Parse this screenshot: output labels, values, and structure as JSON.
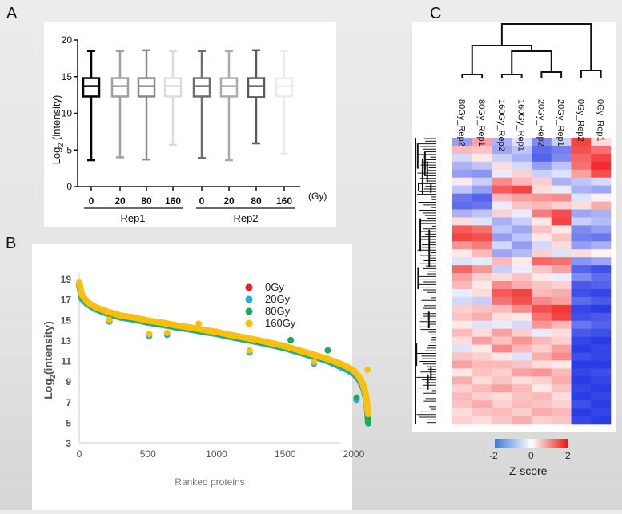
{
  "panels": {
    "a": "A",
    "b": "B",
    "c": "C"
  },
  "chart_data": [
    {
      "type": "box",
      "panel": "A",
      "ylabel": "Log2 (intensity)",
      "ylabel_main": "Log",
      "ylabel_sub": "2",
      "ylabel_rest": " (intensity)",
      "ylim": [
        0,
        20
      ],
      "yticks": [
        "0",
        "5",
        "10",
        "15",
        "20"
      ],
      "x_unit": "(Gy)",
      "groups": [
        {
          "label": "Rep1"
        },
        {
          "label": "Rep2"
        }
      ],
      "boxes": [
        {
          "label": "0",
          "group": "Rep1",
          "min": 3.6,
          "q1": 12.3,
          "median": 13.7,
          "q3": 14.8,
          "max": 18.5,
          "color": "#000000"
        },
        {
          "label": "20",
          "group": "Rep1",
          "min": 4.0,
          "q1": 12.3,
          "median": 13.7,
          "q3": 14.8,
          "max": 18.5,
          "color": "#a0a0a0"
        },
        {
          "label": "80",
          "group": "Rep1",
          "min": 3.7,
          "q1": 12.3,
          "median": 13.7,
          "q3": 14.8,
          "max": 18.6,
          "color": "#8a8a8a"
        },
        {
          "label": "160",
          "group": "Rep1",
          "min": 5.7,
          "q1": 12.3,
          "median": 13.7,
          "q3": 14.8,
          "max": 18.5,
          "color": "#dcdcdc"
        },
        {
          "label": "0",
          "group": "Rep2",
          "min": 3.9,
          "q1": 12.3,
          "median": 13.7,
          "q3": 14.8,
          "max": 18.5,
          "color": "#6e6e6e"
        },
        {
          "label": "20",
          "group": "Rep2",
          "min": 3.6,
          "q1": 12.3,
          "median": 13.7,
          "q3": 14.8,
          "max": 18.5,
          "color": "#ababab"
        },
        {
          "label": "80",
          "group": "Rep2",
          "min": 5.9,
          "q1": 12.2,
          "median": 13.7,
          "q3": 14.8,
          "max": 18.6,
          "color": "#5a5a5a"
        },
        {
          "label": "160",
          "group": "Rep2",
          "min": 4.5,
          "q1": 12.3,
          "median": 13.7,
          "q3": 14.8,
          "max": 18.5,
          "color": "#ebebeb"
        }
      ]
    },
    {
      "type": "scatter",
      "panel": "B",
      "xlabel": "Ranked proteins",
      "ylabel_main": "Log",
      "ylabel_sub": "2",
      "ylabel_rest": "(intensity)",
      "xlim": [
        0,
        2300
      ],
      "ylim": [
        3,
        19.5
      ],
      "xticks": [
        "0",
        "500",
        "1000",
        "1500",
        "2000"
      ],
      "yticks": [
        "3",
        "5",
        "7",
        "9",
        "11",
        "13",
        "15",
        "17",
        "19"
      ],
      "legend_position": "top-right",
      "x": [
        0,
        20,
        60,
        120,
        200,
        300,
        400,
        500,
        600,
        700,
        800,
        900,
        1000,
        1100,
        1200,
        1300,
        1400,
        1500,
        1600,
        1700,
        1800,
        1900,
        1950,
        2000,
        2040,
        2070,
        2090,
        2100,
        2105
      ],
      "series": [
        {
          "name": "0Gy",
          "color": "#e8202a",
          "values": [
            18.5,
            17.2,
            16.6,
            16.1,
            15.7,
            15.3,
            15.1,
            14.8,
            14.6,
            14.35,
            14.15,
            13.9,
            13.7,
            13.4,
            13.15,
            12.9,
            12.6,
            12.3,
            11.9,
            11.5,
            11.1,
            10.6,
            10.3,
            9.9,
            9.3,
            8.5,
            7.4,
            6.0,
            5.2
          ]
        },
        {
          "name": "20Gy",
          "color": "#29a9e6",
          "values": [
            18.4,
            17.0,
            16.5,
            16.0,
            15.6,
            15.2,
            15.0,
            14.7,
            14.5,
            14.25,
            14.05,
            13.8,
            13.6,
            13.3,
            13.05,
            12.8,
            12.5,
            12.2,
            11.8,
            11.4,
            11.0,
            10.4,
            10.1,
            9.7,
            9.1,
            8.3,
            7.2,
            5.9,
            5.3
          ]
        },
        {
          "name": "80Gy",
          "color": "#1aaa5a",
          "values": [
            18.5,
            17.2,
            16.6,
            16.1,
            15.7,
            15.3,
            15.1,
            14.8,
            14.6,
            14.35,
            14.15,
            13.9,
            13.7,
            13.4,
            13.15,
            12.9,
            12.6,
            12.3,
            11.9,
            11.5,
            11.1,
            10.6,
            10.3,
            9.9,
            9.3,
            8.5,
            7.4,
            6.0,
            4.9
          ]
        },
        {
          "name": "160Gy",
          "color": "#fbbf0a",
          "values": [
            18.6,
            17.4,
            16.7,
            16.2,
            15.8,
            15.4,
            15.2,
            14.9,
            14.7,
            14.45,
            14.25,
            14.0,
            13.8,
            13.5,
            13.25,
            13.0,
            12.7,
            12.4,
            12.0,
            11.6,
            11.2,
            10.7,
            10.4,
            10.0,
            9.4,
            8.6,
            7.5,
            6.2,
            5.8
          ]
        }
      ],
      "outliers": [
        {
          "series": "20Gy",
          "x": 510,
          "y": 13.4
        },
        {
          "series": "160Gy",
          "x": 510,
          "y": 13.6
        },
        {
          "series": "20Gy",
          "x": 640,
          "y": 13.5
        },
        {
          "series": "160Gy",
          "x": 640,
          "y": 13.7
        },
        {
          "series": "20Gy",
          "x": 220,
          "y": 14.8
        },
        {
          "series": "160Gy",
          "x": 220,
          "y": 15.0
        },
        {
          "series": "160Gy",
          "x": 870,
          "y": 14.6
        },
        {
          "series": "20Gy",
          "x": 1240,
          "y": 11.8
        },
        {
          "series": "160Gy",
          "x": 1240,
          "y": 12.0
        },
        {
          "series": "80Gy",
          "x": 1540,
          "y": 13.0
        },
        {
          "series": "20Gy",
          "x": 1710,
          "y": 10.7
        },
        {
          "series": "160Gy",
          "x": 1710,
          "y": 10.9
        },
        {
          "series": "80Gy",
          "x": 1810,
          "y": 12.0
        },
        {
          "series": "20Gy",
          "x": 2020,
          "y": 7.2
        },
        {
          "series": "80Gy",
          "x": 2020,
          "y": 7.4
        },
        {
          "series": "160Gy",
          "x": 2100,
          "y": 10.1
        }
      ]
    },
    {
      "type": "heatmap",
      "panel": "C",
      "columns": [
        "80Gy_Rep2",
        "80Gy_Rep1",
        "160Gy_Rep2",
        "160Gy_Rep1",
        "20Gy_Rep2",
        "20Gy_Rep1",
        "0Gy_Rep2",
        "0Gy_Rep1"
      ],
      "colorbar": {
        "label": "Z-score",
        "min": -2,
        "max": 2,
        "ticks": [
          "-2",
          "0",
          "2"
        ],
        "low_color": "#2a3ce6",
        "mid_color": "#ffffff",
        "high_color": "#f01414"
      },
      "rows": [
        [
          -1,
          0.8,
          -0.8,
          -0.3,
          -1.2,
          -0.5,
          1.6,
          0.3
        ],
        [
          0.6,
          0.5,
          -0.9,
          -0.6,
          -1.5,
          -1.3,
          1.5,
          1.2
        ],
        [
          -0.4,
          0.2,
          -0.5,
          -0.8,
          -1.6,
          -1.2,
          1.3,
          1.6
        ],
        [
          -0.8,
          -0.6,
          0.3,
          -0.4,
          -1.0,
          -0.6,
          1.2,
          1.8
        ],
        [
          -1.0,
          -1.1,
          -0.2,
          0.4,
          -0.5,
          -0.3,
          0.8,
          1.5
        ],
        [
          0.2,
          -0.5,
          1.0,
          0.6,
          0.4,
          -0.8,
          -0.6,
          -0.4
        ],
        [
          -0.6,
          -1.0,
          1.4,
          1.6,
          0.3,
          -0.2,
          -0.8,
          -0.9
        ],
        [
          -1.4,
          -1.6,
          0.6,
          0.8,
          0.9,
          1.0,
          -0.3,
          0.1
        ],
        [
          -1.5,
          -1.4,
          -0.2,
          0.5,
          0.6,
          0.4,
          0.3,
          0.7
        ],
        [
          -0.8,
          -0.6,
          0.4,
          -0.2,
          1.1,
          1.5,
          -0.9,
          -0.8
        ],
        [
          0.3,
          -0.3,
          -0.8,
          -0.5,
          0.2,
          1.6,
          -0.5,
          -0.7
        ],
        [
          1.4,
          1.2,
          -0.6,
          -0.9,
          0.5,
          0.2,
          -1.2,
          -1.0
        ],
        [
          1.6,
          1.5,
          -1.0,
          -0.6,
          0.2,
          0.5,
          -1.3,
          -1.4
        ],
        [
          0.9,
          1.1,
          -0.4,
          -1.0,
          -0.4,
          0.3,
          -1.0,
          -0.8
        ],
        [
          0.2,
          0.6,
          -0.9,
          -0.7,
          0.4,
          -0.3,
          0.3,
          0.1
        ],
        [
          -0.3,
          -0.2,
          0.6,
          0.2,
          1.3,
          1.2,
          -1.1,
          -0.9
        ],
        [
          1.3,
          0.9,
          -0.5,
          -0.2,
          0.5,
          0.8,
          -1.6,
          -1.8
        ],
        [
          0.8,
          0.4,
          0.3,
          0.5,
          0.2,
          -0.2,
          -1.2,
          -1.5
        ],
        [
          0.6,
          0.2,
          1.0,
          0.7,
          0.5,
          0.4,
          -1.7,
          -1.6
        ],
        [
          -0.2,
          0.3,
          1.4,
          1.6,
          0.6,
          0.7,
          -1.8,
          -1.9
        ],
        [
          -0.4,
          -0.5,
          1.2,
          1.5,
          1.0,
          0.8,
          -1.5,
          -1.7
        ],
        [
          0.4,
          0.5,
          0.6,
          1.0,
          1.5,
          1.7,
          -1.9,
          -2.0
        ],
        [
          0.5,
          0.7,
          0.3,
          0.2,
          1.2,
          1.6,
          -1.8,
          -1.7
        ],
        [
          0.2,
          -0.3,
          -0.2,
          -0.4,
          0.9,
          0.6,
          -1.4,
          -1.6
        ],
        [
          0.6,
          0.3,
          0.8,
          0.4,
          -0.2,
          0.3,
          -1.7,
          -1.8
        ],
        [
          0.3,
          0.8,
          0.5,
          0.9,
          0.6,
          0.4,
          -1.9,
          -2.0
        ],
        [
          -0.3,
          0.2,
          1.0,
          0.6,
          0.4,
          0.8,
          -2.0,
          -1.9
        ],
        [
          0.5,
          0.4,
          0.2,
          -0.3,
          0.7,
          1.0,
          -1.8,
          -1.9
        ],
        [
          0.8,
          0.6,
          0.6,
          0.5,
          0.3,
          0.2,
          -2.0,
          -2.0
        ],
        [
          0.2,
          0.5,
          0.4,
          0.8,
          0.9,
          0.6,
          -1.9,
          -1.8
        ],
        [
          0.7,
          0.3,
          0.5,
          0.3,
          0.4,
          0.7,
          -2.0,
          -1.9
        ],
        [
          0.4,
          0.6,
          0.8,
          0.6,
          0.2,
          0.5,
          -1.9,
          -2.0
        ],
        [
          0.6,
          0.4,
          0.3,
          0.5,
          0.6,
          0.3,
          -2.0,
          -1.9
        ],
        [
          0.5,
          0.7,
          0.4,
          0.6,
          0.5,
          0.4,
          -1.8,
          -2.0
        ],
        [
          0.3,
          0.5,
          0.6,
          0.4,
          0.7,
          0.6,
          -2.0,
          -1.9
        ],
        [
          0.4,
          0.3,
          0.5,
          0.7,
          0.4,
          0.5,
          -1.9,
          -2.0
        ]
      ]
    }
  ]
}
